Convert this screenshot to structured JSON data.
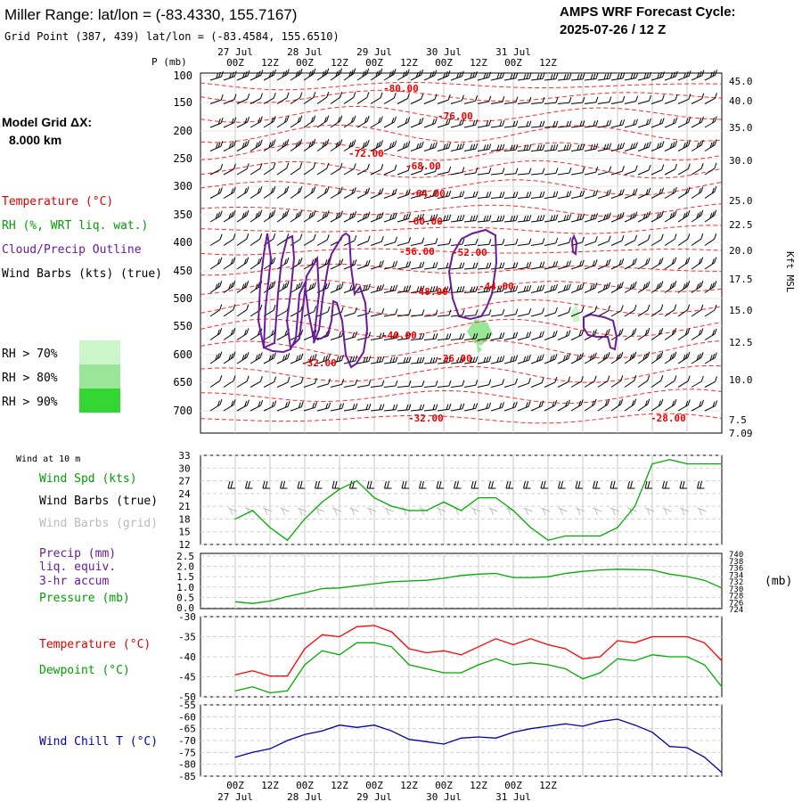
{
  "header": {
    "title": "Miller Range:  lat/lon = (-83.4330, 155.7167)",
    "subtitle": "Grid Point (387, 439) lat/lon = (-83.4584, 155.6510)",
    "model_label": "AMPS WRF Forecast Cycle:",
    "cycle": "2025-07-26 / 12  Z"
  },
  "grid_label": {
    "line1": "Model Grid ΔX:",
    "line2": "8.000 km"
  },
  "legend": {
    "temperature": "Temperature (°C)",
    "rh": "RH (%, WRT liq. wat.)",
    "cloud": "Cloud/Precip Outline",
    "wind": "Wind Barbs (kts) (true)",
    "rh70": "RH > 70%",
    "rh80": "RH > 80%",
    "rh90": "RH > 90%",
    "colors": {
      "temperature": "#ff0000",
      "rh": "#00aa00",
      "cloud": "#6a1b9a",
      "rh70": "#ccf5cc",
      "rh80": "#99e699",
      "rh90": "#33d633",
      "pressure_line": "#00aa00",
      "dewpoint": "#00aa00",
      "windchill": "#0000aa"
    }
  },
  "time_axis": {
    "top_dates": [
      "27 Jul",
      "28 Jul",
      "29 Jul",
      "30 Jul",
      "31 Jul"
    ],
    "top_hours": [
      "00Z",
      "12Z",
      "00Z",
      "12Z",
      "00Z",
      "12Z",
      "00Z",
      "12Z",
      "00Z",
      "12Z"
    ],
    "bottom_hours": [
      "00Z",
      "12Z",
      "00Z",
      "12Z",
      "00Z",
      "12Z",
      "00Z",
      "12Z",
      "00Z",
      "12Z"
    ],
    "bottom_dates": [
      "27 Jul",
      "28 Jul",
      "29 Jul",
      "30 Jul",
      "31 Jul"
    ],
    "p_label": "P (mb)"
  },
  "chart_data": [
    {
      "type": "heatmap",
      "title": "Miller Range:  lat/lon = (-83.4330, 155.7167)",
      "y_left_label": "P (mb)",
      "y_left_ticks": [
        "100",
        "150",
        "200",
        "250",
        "300",
        "350",
        "400",
        "450",
        "500",
        "550",
        "600",
        "650",
        "700"
      ],
      "y_right_label": "Kft MSL",
      "y_right_ticks": [
        "45.0",
        "40.0",
        "35.0",
        "30.0",
        "25.0",
        "22.5",
        "20.0",
        "17.5",
        "15.0",
        "12.5",
        "10.0",
        "7.5",
        "7.09"
      ],
      "temperature_contour_labels": [
        "-80.00",
        "-76.00",
        "-72.00",
        "-68.00",
        "-64.00",
        "-60.00",
        "-56.00",
        "-52.00",
        "-48.00",
        "-44.00",
        "-40.00",
        "-36.00",
        "-32.00",
        "-32.00",
        "-28.00"
      ]
    },
    {
      "type": "line",
      "title": "Wind at 10 m",
      "series_labels": [
        "Wind Spd (kts)",
        "Wind Barbs (true)",
        "Wind Barbs (grid)"
      ],
      "y_ticks": [
        "33",
        "30",
        "27",
        "24",
        "21",
        "18",
        "15",
        "12"
      ],
      "ylim": [
        12,
        33
      ],
      "x_hours": [
        0,
        6,
        12,
        18,
        24,
        30,
        36,
        42,
        48,
        54,
        60,
        66,
        72,
        78,
        84,
        90,
        96,
        102,
        108,
        114,
        120,
        126,
        132,
        138,
        144,
        150,
        156,
        162,
        168
      ],
      "series": [
        {
          "name": "Wind Spd (kts)",
          "values": [
            18,
            20,
            16,
            13,
            18,
            22,
            25,
            27,
            23,
            21,
            20,
            20,
            22,
            20,
            23,
            23,
            20,
            16,
            13,
            14,
            14,
            14,
            16,
            21,
            31,
            32,
            31,
            31,
            31
          ]
        }
      ]
    },
    {
      "type": "line",
      "series_labels": [
        "Precip (mm)",
        "liq. equiv.",
        "3-hr accum",
        "Pressure (mb)"
      ],
      "y_left_ticks": [
        "2.5",
        "2.0",
        "1.5",
        "1.0",
        "0.5",
        "0.0"
      ],
      "y_right_label": "(mb)",
      "y_right_ticks": [
        "740",
        "738",
        "736",
        "734",
        "732",
        "730",
        "728",
        "726",
        "724"
      ],
      "ylim": [
        724,
        740
      ],
      "x_hours": [
        0,
        6,
        12,
        18,
        24,
        30,
        36,
        42,
        48,
        54,
        60,
        66,
        72,
        78,
        84,
        90,
        96,
        102,
        108,
        114,
        120,
        126,
        132,
        138,
        144,
        150,
        156,
        162,
        168
      ],
      "series": [
        {
          "name": "Pressure (mb)",
          "values": [
            726.0,
            725.5,
            726.2,
            727.5,
            728.6,
            729.8,
            730.0,
            730.6,
            731.2,
            731.8,
            732.0,
            732.2,
            732.8,
            733.6,
            734.0,
            734.2,
            733.0,
            733.0,
            733.2,
            734.2,
            734.8,
            735.2,
            735.4,
            735.3,
            735.2,
            734.0,
            733.3,
            732.2,
            730.0
          ]
        }
      ]
    },
    {
      "type": "line",
      "series_labels": [
        "Temperature (°C)",
        "Dewpoint (°C)"
      ],
      "y_ticks": [
        "-30",
        "-35",
        "-40",
        "-45",
        "-50"
      ],
      "ylim": [
        -50,
        -30
      ],
      "x_hours": [
        0,
        6,
        12,
        18,
        24,
        30,
        36,
        42,
        48,
        54,
        60,
        66,
        72,
        78,
        84,
        90,
        96,
        102,
        108,
        114,
        120,
        126,
        132,
        138,
        144,
        150,
        156,
        162,
        168
      ],
      "series": [
        {
          "name": "Temperature (°C)",
          "values": [
            -44.5,
            -43.5,
            -44.8,
            -44.8,
            -38.0,
            -34.5,
            -35.0,
            -32.5,
            -32.2,
            -33.8,
            -38.0,
            -39.0,
            -38.5,
            -39.5,
            -37.5,
            -35.5,
            -37.0,
            -35.5,
            -37.0,
            -38.0,
            -40.5,
            -40.0,
            -36.0,
            -36.5,
            -35.0,
            -35.0,
            -35.0,
            -36.5,
            -41.0
          ]
        },
        {
          "name": "Dewpoint (°C)",
          "values": [
            -48.5,
            -47.5,
            -49.0,
            -48.5,
            -42.0,
            -38.5,
            -39.5,
            -36.5,
            -36.5,
            -37.5,
            -42.0,
            -43.0,
            -44.0,
            -44.0,
            -42.0,
            -40.5,
            -42.0,
            -41.5,
            -42.0,
            -43.0,
            -45.5,
            -44.0,
            -40.5,
            -41.0,
            -39.5,
            -40.0,
            -40.0,
            -42.0,
            -47.5
          ]
        }
      ]
    },
    {
      "type": "line",
      "series_labels": [
        "Wind Chill T (°C)"
      ],
      "y_ticks": [
        "-55",
        "-60",
        "-65",
        "-70",
        "-75",
        "-80",
        "-85"
      ],
      "ylim": [
        -85,
        -55
      ],
      "x_hours": [
        0,
        6,
        12,
        18,
        24,
        30,
        36,
        42,
        48,
        54,
        60,
        66,
        72,
        78,
        84,
        90,
        96,
        102,
        108,
        114,
        120,
        126,
        132,
        138,
        144,
        150,
        156,
        162,
        168
      ],
      "series": [
        {
          "name": "Wind Chill T (°C)",
          "values": [
            -77.0,
            -75.0,
            -73.5,
            -70.0,
            -67.5,
            -66.0,
            -63.5,
            -64.5,
            -63.5,
            -66.0,
            -69.5,
            -70.5,
            -71.5,
            -69.0,
            -68.5,
            -69.0,
            -66.5,
            -65.0,
            -64.0,
            -63.0,
            -64.0,
            -62.0,
            -61.0,
            -63.5,
            -66.5,
            -72.5,
            -73.0,
            -77.0,
            -83.5
          ]
        }
      ]
    }
  ]
}
